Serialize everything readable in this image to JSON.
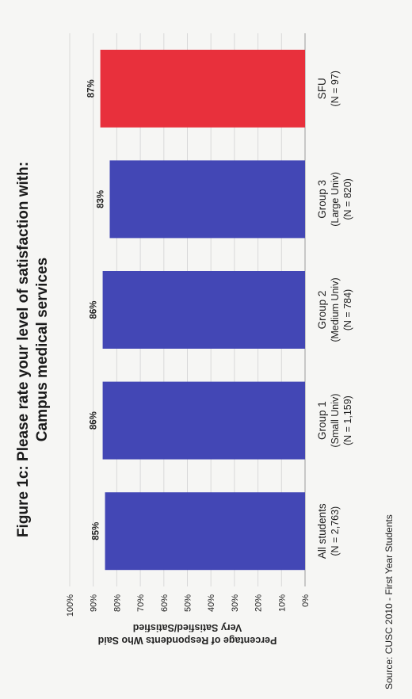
{
  "figure": {
    "title_line1": "Figure 1c: Please rate your level of satisfaction with:",
    "title_line2": "Campus medical services",
    "source": "Source: CUSC 2010 - First Year Students"
  },
  "chart_data": {
    "type": "bar",
    "title": "Figure 1c: Please rate your level of satisfaction with: Campus medical services",
    "ylabel": [
      "Percentage of Respondents Who Said",
      "Very Satisfied/Satisfied"
    ],
    "ylim": [
      0,
      100
    ],
    "yticks": [
      "0%",
      "10%",
      "20%",
      "30%",
      "40%",
      "50%",
      "60%",
      "70%",
      "80%",
      "90%",
      "100%"
    ],
    "categories": [
      [
        "All students",
        "(N = 2,763)"
      ],
      [
        "Group 1",
        "(Small Univ)",
        "(N = 1,159)"
      ],
      [
        "Group 2",
        "(Medium Univ)",
        "(N = 784)"
      ],
      [
        "Group 3",
        "(Large Univ)",
        "(N = 820)"
      ],
      [
        "SFU",
        "(N = 97)"
      ]
    ],
    "values": [
      85,
      86,
      86,
      83,
      87
    ],
    "data_labels": [
      "85%",
      "86%",
      "86%",
      "83%",
      "87%"
    ],
    "colors": [
      "#4347b5",
      "#4347b5",
      "#4347b5",
      "#4347b5",
      "#e8303c"
    ],
    "grid": true,
    "legend": "none"
  }
}
